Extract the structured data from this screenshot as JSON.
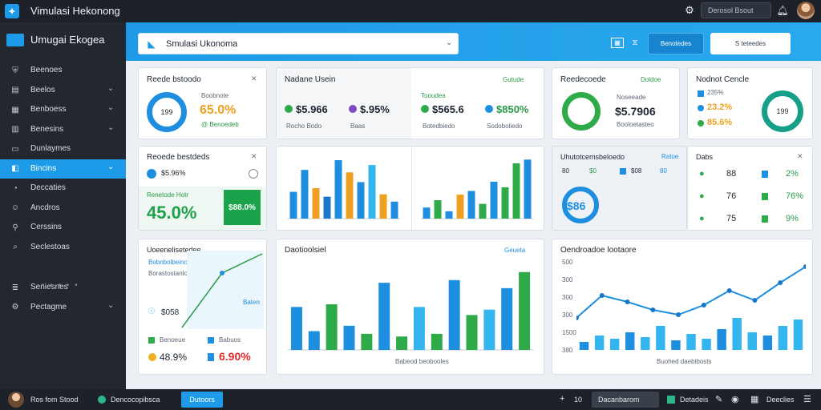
{
  "titlebar": {
    "title": "Vimulasi Hekonong",
    "search": "Derosol Bsout",
    "logo_icon": "app-logo-icon",
    "cog_icon": "settings-icon",
    "bell_icon": "bell-icon"
  },
  "sidebar": {
    "brand": "Umugai Ekogea",
    "items": [
      {
        "label": "Beenoes",
        "icon": "shield-icon",
        "chevron": ""
      },
      {
        "label": "Beelos",
        "icon": "document-icon",
        "chevron": "⌄"
      },
      {
        "label": "Benboess",
        "icon": "grid-icon",
        "chevron": "⌄"
      },
      {
        "label": "Benesins",
        "icon": "briefcase-icon",
        "chevron": "⌄"
      },
      {
        "label": "Dunlaymes",
        "icon": "monitor-icon",
        "chevron": ""
      },
      {
        "label": "Bincins",
        "icon": "chart-icon",
        "chevron": "⌄",
        "active": true
      },
      {
        "label": "Deccaties",
        "icon": "circle-icon",
        "chevron": ""
      },
      {
        "label": "Ancdros",
        "icon": "user-icon",
        "chevron": ""
      },
      {
        "label": "Cerssins",
        "icon": "pin-icon",
        "chevron": ""
      },
      {
        "label": "Seclestoas",
        "icon": "search-icon",
        "chevron": ""
      },
      {
        "label": "Seniesnes",
        "icon": "layers-icon",
        "chevron": ""
      },
      {
        "label": "Pectagme",
        "icon": "gear-icon",
        "chevron": "⌄"
      }
    ],
    "more": "• • • • •"
  },
  "header": {
    "select_value": "Smulasi Ukonoma",
    "button1": "Benotedes",
    "button2": "S teteedes"
  },
  "cards": {
    "c1": {
      "title": "Reede bstoodo",
      "value": "65.0%",
      "sub": "@ Benoedeb",
      "ring": "199",
      "ring_color": "#1e8fe0"
    },
    "c2": {
      "title": "Nadane Usein",
      "m1": "$5.966",
      "m2": "$.95%",
      "m3": "$565.6",
      "m4": "$850%",
      "l1": "Rocho Bodo",
      "l2": "Baas",
      "l3": "Botedbiedo",
      "l4": "Sodoboliedo",
      "tag": "Gutude",
      "tag2": "Tooudea"
    },
    "c3": {
      "title": "Reedecoede",
      "value": "$5.7906",
      "sub": "Booloetasteo",
      "tag": "Doldoe",
      "ring_color": "#2faa48"
    },
    "c4": {
      "title": "Nodnot Cencle",
      "r1": "235%",
      "r2": "23.2%",
      "r3": "85.6%",
      "ring": "199",
      "ring_color": "#16a08a"
    },
    "c5": {
      "title": "Reoede bestdeds",
      "top": "$5.96%",
      "label": "Renetode Hotr",
      "big": "45.0%",
      "badge": "$88.0%"
    },
    "c6": {
      "title": "Uhutotcemsbeloedo",
      "a": "80",
      "b": "$0",
      "c": "$08",
      "d": "80",
      "ring": "$86",
      "tag": "Ratoe"
    },
    "c7": {
      "title": "Dabs",
      "rows": [
        {
          "icon": "●",
          "v": "88",
          "p": "2%"
        },
        {
          "icon": "●",
          "v": "76",
          "p": "76%"
        },
        {
          "icon": "●",
          "v": "75",
          "p": "9%"
        }
      ]
    },
    "c8": {
      "title": "Uoeenelisetedee",
      "l1": "Bobnbolbeinotats",
      "l2": "Borastostanlo",
      "tag": "Baten",
      "value": "$058",
      "b1": "Benoeue",
      "v1": "48.9%",
      "b2": "Babuos",
      "v2": "6.90%"
    },
    "c9": {
      "title": "Daotioolsiel",
      "xlabel": "Babeod beobooles",
      "tag": "Geueta"
    },
    "c10": {
      "title": "Oendroadoe lootaore",
      "xlabel": "Buohed daebibosts",
      "ticks": [
        "500",
        "300",
        "300",
        "300",
        "1500",
        "380"
      ]
    }
  },
  "chart_data": [
    {
      "type": "bar",
      "series": [
        {
          "name": "",
          "values": [
            22,
            40,
            25,
            18,
            48,
            38,
            30,
            44,
            20,
            14
          ]
        }
      ]
    },
    {
      "type": "bar",
      "series": [
        {
          "name": "",
          "values": [
            12,
            20,
            8,
            26,
            30,
            16,
            40,
            34,
            60,
            64
          ]
        }
      ]
    },
    {
      "type": "bar",
      "series": [
        {
          "name": "",
          "values": [
            32,
            14,
            34,
            18,
            12,
            50,
            10,
            32,
            12,
            52,
            26,
            30,
            46,
            58
          ]
        }
      ]
    },
    {
      "type": "line",
      "series": [
        {
          "name": "",
          "values": [
            200,
            340,
            300,
            250,
            220,
            280,
            370,
            310,
            420,
            520
          ]
        }
      ]
    }
  ],
  "bottombar": {
    "user": "Ros fom Stood",
    "status": "Dencocopibsca",
    "btn": "Dutoors",
    "num": "10",
    "field": "Dacanbarom",
    "t1": "Detadeis",
    "t2": "Deeclies"
  }
}
